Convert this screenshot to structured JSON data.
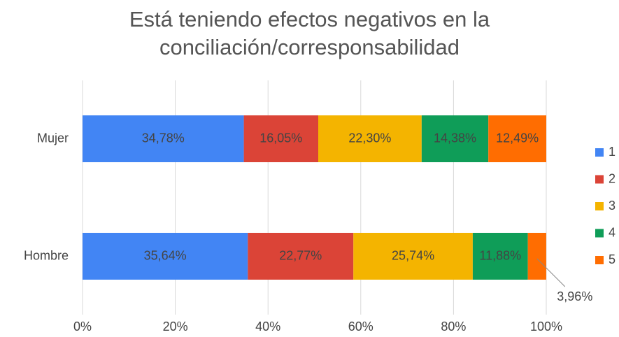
{
  "chart_data": {
    "type": "stacked_hbar",
    "title": "Está teniendo efectos negativos en la conciliación/corresponsabilidad",
    "categories": [
      "Mujer",
      "Hombre"
    ],
    "series": [
      {
        "name": "1",
        "color": "#4285f4",
        "values": [
          34.78,
          35.64
        ],
        "value_labels": [
          "34,78%",
          "35,64%"
        ]
      },
      {
        "name": "2",
        "color": "#db4437",
        "values": [
          16.05,
          22.77
        ],
        "value_labels": [
          "16,05%",
          "22,77%"
        ]
      },
      {
        "name": "3",
        "color": "#f4b400",
        "values": [
          22.3,
          25.74
        ],
        "value_labels": [
          "22,30%",
          "25,74%"
        ]
      },
      {
        "name": "4",
        "color": "#0f9d58",
        "values": [
          14.38,
          11.88
        ],
        "value_labels": [
          "14,38%",
          "11,88%"
        ]
      },
      {
        "name": "5",
        "color": "#ff6d01",
        "values": [
          12.49,
          3.96
        ],
        "value_labels": [
          "12,49%",
          "3,96%"
        ]
      }
    ],
    "xlim": [
      0,
      100
    ],
    "xticks": [
      {
        "value": 0,
        "label": "0%"
      },
      {
        "value": 20,
        "label": "20%"
      },
      {
        "value": 40,
        "label": "40%"
      },
      {
        "value": 60,
        "label": "60%"
      },
      {
        "value": 80,
        "label": "80%"
      },
      {
        "value": 100,
        "label": "100%"
      }
    ],
    "grid": true,
    "legend": "right"
  }
}
